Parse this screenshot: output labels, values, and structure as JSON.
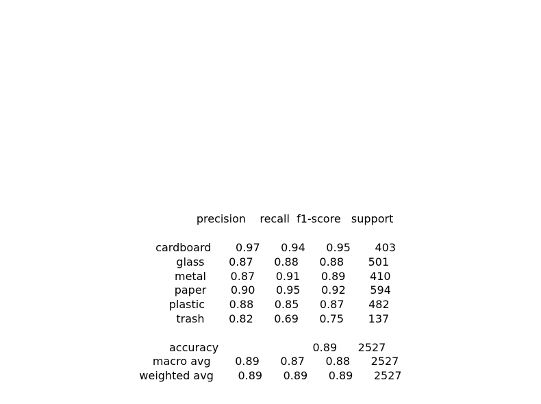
{
  "report": {
    "lines": [
      "              precision    recall  f1-score   support",
      "",
      "   cardboard       0.97      0.94      0.95       403",
      "       glass       0.87      0.88      0.88       501",
      "       metal       0.87      0.91      0.89       410",
      "       paper       0.90      0.95      0.92       594",
      "     plastic       0.88      0.85      0.87       482",
      "       trash       0.82      0.69      0.75       137",
      "",
      "    accuracy                           0.89      2527",
      "   macro avg       0.89      0.87      0.88      2527",
      "weighted avg       0.89      0.89      0.89      2527"
    ]
  }
}
